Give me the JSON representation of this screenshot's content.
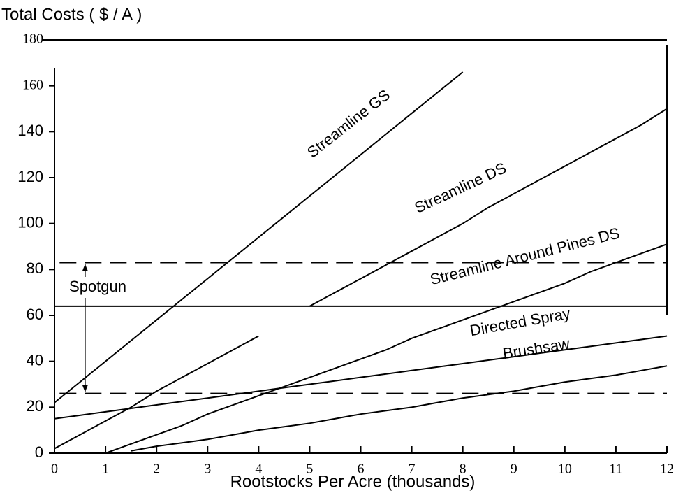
{
  "chart_data": {
    "type": "line",
    "title": "Total Costs ( $ / A )",
    "x_label": "Rootstocks Per Acre (thousands)",
    "x": [
      0,
      0.5,
      1,
      1.5,
      2,
      2.5,
      3,
      3.5,
      4,
      4.5,
      5,
      5.5,
      6,
      6.5,
      7,
      7.5,
      8,
      8.5,
      9,
      9.5,
      10,
      10.5,
      11,
      11.5,
      12
    ],
    "series": [
      {
        "name": "Streamline GS",
        "color": "#000000",
        "values": [
          22,
          31,
          40,
          49,
          58,
          67,
          76,
          85,
          94,
          103,
          112,
          121,
          130,
          139,
          148,
          157,
          166,
          null,
          null,
          null,
          null,
          null,
          null,
          null,
          null
        ]
      },
      {
        "name": "Streamline DS",
        "color": "#000000",
        "values": [
          2,
          8,
          14,
          20,
          27,
          33,
          39,
          45,
          51,
          null,
          64,
          70,
          76,
          82,
          88,
          94,
          100,
          107,
          113,
          119,
          125,
          131,
          137,
          143,
          150
        ]
      },
      {
        "name": "Streamline Around Pines DS",
        "color": "#000000",
        "values": [
          null,
          null,
          0,
          4,
          8,
          12,
          17,
          21,
          25,
          29,
          33,
          37,
          41,
          45,
          50,
          54,
          58,
          62,
          66,
          70,
          74,
          79,
          83,
          87,
          91
        ]
      },
      {
        "name": "Directed Spray",
        "color": "#000000",
        "values": [
          15,
          16.5,
          18,
          19.5,
          21,
          22.5,
          24,
          25.5,
          27,
          28.5,
          30,
          31.5,
          33,
          34.5,
          36,
          37.5,
          39,
          40.5,
          42,
          43.5,
          45,
          46.5,
          48,
          49.5,
          51
        ]
      },
      {
        "name": "Brushsaw",
        "color": "#000000",
        "values": [
          null,
          null,
          null,
          1,
          3,
          4.5,
          6,
          8,
          10,
          11.5,
          13,
          15,
          17,
          18.5,
          20,
          22,
          24,
          25.5,
          27,
          29,
          31,
          32.5,
          34,
          36,
          38
        ]
      },
      {
        "name": "Spotgun",
        "color": "#000000",
        "values": [
          64,
          64,
          64,
          64,
          64,
          64,
          64,
          64,
          64,
          64,
          64,
          64,
          64,
          64,
          64,
          64,
          64,
          64,
          64,
          64,
          64,
          64,
          64,
          64,
          64
        ]
      }
    ],
    "reference_lines": [
      {
        "value": 83,
        "style": "dashed"
      },
      {
        "value": 26,
        "style": "dashed"
      }
    ],
    "xlim": [
      0,
      12
    ],
    "xticks": [
      0,
      1,
      2,
      3,
      4,
      5,
      6,
      7,
      8,
      9,
      10,
      11,
      12
    ],
    "ylim": [
      0,
      180
    ],
    "yticks": [
      0,
      20,
      40,
      60,
      80,
      100,
      120,
      140,
      160,
      180
    ],
    "grid": false
  }
}
